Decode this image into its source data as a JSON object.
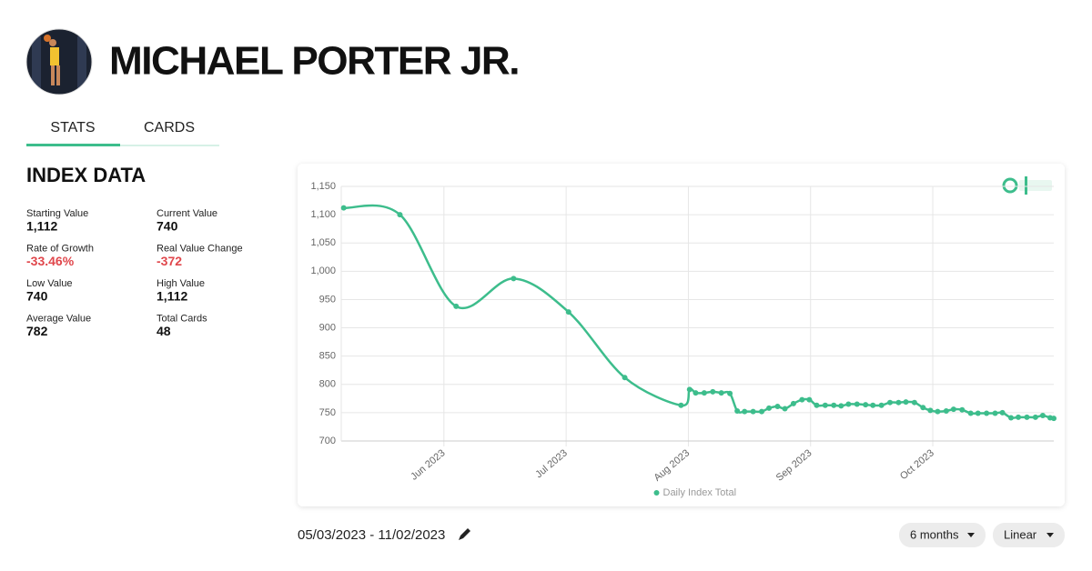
{
  "header": {
    "title": "MICHAEL PORTER JR."
  },
  "tabs": [
    "STATS",
    "CARDS"
  ],
  "section_title": "INDEX DATA",
  "stats": [
    {
      "label": "Starting Value",
      "value": "1,112"
    },
    {
      "label": "Current Value",
      "value": "740"
    },
    {
      "label": "Rate of Growth",
      "value": "-33.46%"
    },
    {
      "label": "Real Value Change",
      "value": "-372"
    },
    {
      "label": "Low Value",
      "value": "740"
    },
    {
      "label": "High Value",
      "value": "1,112"
    },
    {
      "label": "Average Value",
      "value": "782"
    },
    {
      "label": "Total Cards",
      "value": "48"
    }
  ],
  "chart_data": {
    "type": "line",
    "x": [
      5.18,
      5.64,
      6.1,
      6.57,
      7.02,
      7.48,
      7.94,
      8.01,
      8.06,
      8.13,
      8.2,
      8.27,
      8.34,
      8.4,
      8.46,
      8.53,
      8.6,
      8.66,
      8.73,
      8.79,
      8.86,
      8.93,
      8.99,
      9.05,
      9.12,
      9.19,
      9.25,
      9.31,
      9.38,
      9.45,
      9.51,
      9.58,
      9.65,
      9.72,
      9.78,
      9.85,
      9.92,
      9.98,
      10.04,
      10.11,
      10.17,
      10.24,
      10.31,
      10.37,
      10.44,
      10.51,
      10.57,
      10.64,
      10.7,
      10.77,
      10.84,
      10.9,
      10.96,
      10.99
    ],
    "series": [
      {
        "name": "Daily Index Total",
        "color": "#3dbd8c",
        "values": [
          1112,
          1100,
          938,
          987,
          928,
          812,
          763,
          791,
          785,
          785,
          787,
          785,
          784,
          753,
          752,
          752,
          752,
          758,
          761,
          757,
          766,
          773,
          773,
          763,
          763,
          763,
          762,
          765,
          765,
          764,
          763,
          763,
          768,
          768,
          769,
          768,
          759,
          754,
          752,
          753,
          756,
          755,
          749,
          749,
          749,
          749,
          750,
          741,
          742,
          742,
          742,
          745,
          741,
          740
        ]
      }
    ],
    "xlim": [
      5.16,
      10.99
    ],
    "xticks": [
      {
        "value": 6,
        "label": "Jun 2023"
      },
      {
        "value": 7,
        "label": "Jul 2023"
      },
      {
        "value": 8,
        "label": "Aug 2023"
      },
      {
        "value": 9,
        "label": "Sep 2023"
      },
      {
        "value": 10,
        "label": "Oct 2023"
      }
    ],
    "ylim": [
      700,
      1150
    ],
    "yticks": [
      700,
      750,
      800,
      850,
      900,
      950,
      {
        "value": 1000,
        "label": "1,000"
      },
      {
        "value": 1050,
        "label": "1,050"
      },
      {
        "value": 1100,
        "label": "1,100"
      },
      {
        "value": 1150,
        "label": "1,150"
      }
    ],
    "grid": true,
    "legend": "bottom"
  },
  "date_range": "05/03/2023 - 11/02/2023",
  "controls": [
    "6 months",
    "Linear"
  ]
}
